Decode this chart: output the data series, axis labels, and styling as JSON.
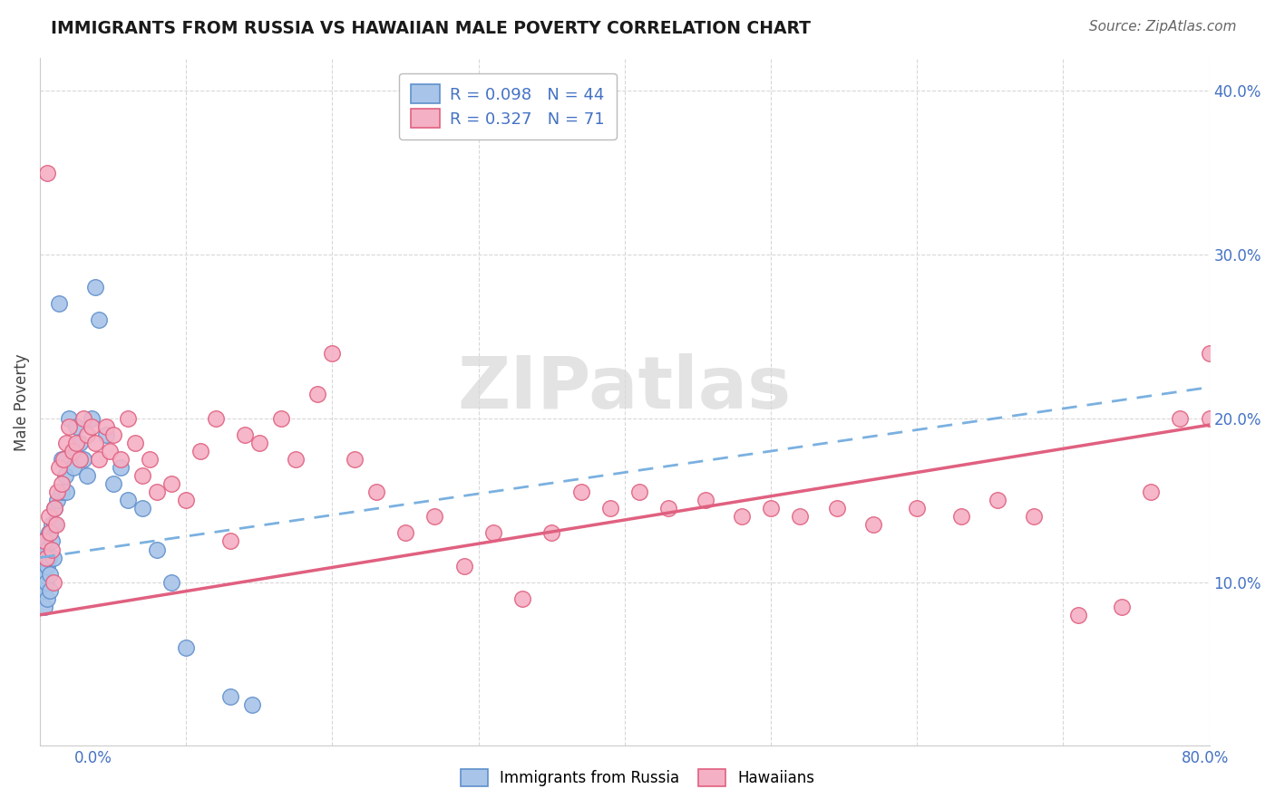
{
  "title": "IMMIGRANTS FROM RUSSIA VS HAWAIIAN MALE POVERTY CORRELATION CHART",
  "source": "Source: ZipAtlas.com",
  "ylabel": "Male Poverty",
  "color_blue": "#a8c4e8",
  "color_blue_edge": "#6090cc",
  "color_pink": "#f4b0c4",
  "color_pink_edge": "#e06080",
  "line_blue_color": "#7ab0e0",
  "line_pink_color": "#e06080",
  "tick_color": "#4472C4",
  "title_color": "#1a1a1a",
  "source_color": "#666666",
  "grid_color": "#d8d8d8",
  "watermark_color": "#e0e0e0",
  "x_min": 0.0,
  "x_max": 0.8,
  "y_min": 0.0,
  "y_max": 0.42,
  "russia_x": [
    0.001,
    0.002,
    0.002,
    0.003,
    0.003,
    0.004,
    0.004,
    0.005,
    0.005,
    0.006,
    0.006,
    0.007,
    0.007,
    0.008,
    0.008,
    0.009,
    0.01,
    0.01,
    0.012,
    0.013,
    0.015,
    0.015,
    0.017,
    0.018,
    0.02,
    0.022,
    0.023,
    0.025,
    0.027,
    0.03,
    0.032,
    0.035,
    0.038,
    0.04,
    0.045,
    0.05,
    0.055,
    0.06,
    0.07,
    0.08,
    0.09,
    0.1,
    0.13,
    0.145
  ],
  "russia_y": [
    0.125,
    0.115,
    0.105,
    0.095,
    0.085,
    0.12,
    0.1,
    0.11,
    0.09,
    0.13,
    0.115,
    0.105,
    0.095,
    0.135,
    0.125,
    0.115,
    0.145,
    0.135,
    0.15,
    0.27,
    0.155,
    0.175,
    0.165,
    0.155,
    0.2,
    0.18,
    0.17,
    0.195,
    0.185,
    0.175,
    0.165,
    0.2,
    0.28,
    0.26,
    0.19,
    0.16,
    0.17,
    0.15,
    0.145,
    0.12,
    0.1,
    0.06,
    0.03,
    0.025
  ],
  "hawaii_x": [
    0.003,
    0.004,
    0.005,
    0.006,
    0.007,
    0.008,
    0.009,
    0.01,
    0.011,
    0.012,
    0.013,
    0.015,
    0.016,
    0.018,
    0.02,
    0.022,
    0.025,
    0.027,
    0.03,
    0.032,
    0.035,
    0.038,
    0.04,
    0.045,
    0.048,
    0.05,
    0.055,
    0.06,
    0.065,
    0.07,
    0.075,
    0.08,
    0.09,
    0.1,
    0.11,
    0.12,
    0.13,
    0.14,
    0.15,
    0.165,
    0.175,
    0.19,
    0.2,
    0.215,
    0.23,
    0.25,
    0.27,
    0.29,
    0.31,
    0.33,
    0.35,
    0.37,
    0.39,
    0.41,
    0.43,
    0.455,
    0.48,
    0.5,
    0.52,
    0.545,
    0.57,
    0.6,
    0.63,
    0.655,
    0.68,
    0.71,
    0.74,
    0.76,
    0.78,
    0.8,
    0.8
  ],
  "hawaii_y": [
    0.125,
    0.115,
    0.35,
    0.14,
    0.13,
    0.12,
    0.1,
    0.145,
    0.135,
    0.155,
    0.17,
    0.16,
    0.175,
    0.185,
    0.195,
    0.18,
    0.185,
    0.175,
    0.2,
    0.19,
    0.195,
    0.185,
    0.175,
    0.195,
    0.18,
    0.19,
    0.175,
    0.2,
    0.185,
    0.165,
    0.175,
    0.155,
    0.16,
    0.15,
    0.18,
    0.2,
    0.125,
    0.19,
    0.185,
    0.2,
    0.175,
    0.215,
    0.24,
    0.175,
    0.155,
    0.13,
    0.14,
    0.11,
    0.13,
    0.09,
    0.13,
    0.155,
    0.145,
    0.155,
    0.145,
    0.15,
    0.14,
    0.145,
    0.14,
    0.145,
    0.135,
    0.145,
    0.14,
    0.15,
    0.14,
    0.08,
    0.085,
    0.155,
    0.2,
    0.2,
    0.24
  ]
}
